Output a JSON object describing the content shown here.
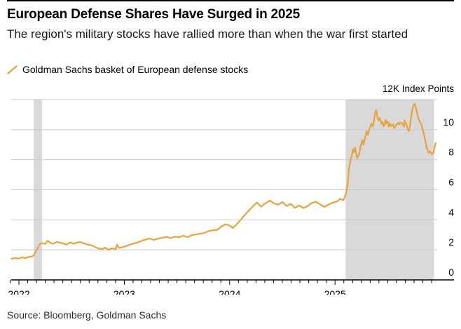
{
  "header": {
    "title": "European Defense Shares Have Surged in 2025",
    "subtitle": "The region's military stocks have rallied more than when the war first started"
  },
  "legend": {
    "label": "Goldman Sachs basket of European defense stocks"
  },
  "axis_unit_label": "12K Index Points",
  "source": "Source: Bloomberg, Goldman Sachs",
  "colors": {
    "line": "#E8A33D",
    "band": "#D9D9D9",
    "gridline": "#C9C9C9",
    "axis": "#000000",
    "text": "#000000"
  },
  "chart_data": {
    "type": "line",
    "title": "European Defense Shares Have Surged in 2025",
    "xlabel": "",
    "ylabel": "12K Index Points",
    "legend_position": "top-left",
    "grid": true,
    "xlim": [
      2021.93,
      2025.96
    ],
    "ylim": [
      0,
      12
    ],
    "x_ticks": [
      2022,
      2023,
      2024,
      2025
    ],
    "x_tick_labels": [
      "2022",
      "2023",
      "2024",
      "2025"
    ],
    "minor_x_tick_interval": 0.08333,
    "y_ticks": [
      0,
      2,
      4,
      6,
      8,
      10
    ],
    "y_tick_labels": [
      "0",
      "2",
      "4",
      "6",
      "8",
      "10"
    ],
    "y_top_gridline": 12,
    "shaded_bands": [
      {
        "x0": 2022.14,
        "x1": 2022.22
      },
      {
        "x0": 2025.1,
        "x1": 2025.94
      }
    ],
    "series": [
      {
        "name": "Goldman Sachs basket of European defense stocks",
        "color": "#E8A33D",
        "points": [
          [
            2021.93,
            1.4
          ],
          [
            2021.96,
            1.45
          ],
          [
            2022.0,
            1.42
          ],
          [
            2022.03,
            1.5
          ],
          [
            2022.06,
            1.44
          ],
          [
            2022.09,
            1.52
          ],
          [
            2022.12,
            1.55
          ],
          [
            2022.14,
            1.62
          ],
          [
            2022.16,
            1.9
          ],
          [
            2022.18,
            2.15
          ],
          [
            2022.2,
            2.4
          ],
          [
            2022.22,
            2.45
          ],
          [
            2022.25,
            2.38
          ],
          [
            2022.27,
            2.6
          ],
          [
            2022.3,
            2.48
          ],
          [
            2022.32,
            2.4
          ],
          [
            2022.36,
            2.52
          ],
          [
            2022.39,
            2.48
          ],
          [
            2022.42,
            2.42
          ],
          [
            2022.45,
            2.35
          ],
          [
            2022.49,
            2.5
          ],
          [
            2022.52,
            2.4
          ],
          [
            2022.55,
            2.48
          ],
          [
            2022.58,
            2.52
          ],
          [
            2022.61,
            2.45
          ],
          [
            2022.65,
            2.35
          ],
          [
            2022.69,
            2.3
          ],
          [
            2022.72,
            2.2
          ],
          [
            2022.75,
            2.1
          ],
          [
            2022.79,
            2.05
          ],
          [
            2022.82,
            2.15
          ],
          [
            2022.85,
            2.0
          ],
          [
            2022.88,
            2.1
          ],
          [
            2022.92,
            2.05
          ],
          [
            2022.93,
            2.35
          ],
          [
            2022.95,
            2.12
          ],
          [
            2022.98,
            2.18
          ],
          [
            2023.0,
            2.2
          ],
          [
            2023.04,
            2.32
          ],
          [
            2023.08,
            2.4
          ],
          [
            2023.12,
            2.48
          ],
          [
            2023.16,
            2.58
          ],
          [
            2023.2,
            2.68
          ],
          [
            2023.24,
            2.76
          ],
          [
            2023.28,
            2.66
          ],
          [
            2023.32,
            2.74
          ],
          [
            2023.36,
            2.8
          ],
          [
            2023.4,
            2.86
          ],
          [
            2023.44,
            2.78
          ],
          [
            2023.48,
            2.88
          ],
          [
            2023.52,
            2.84
          ],
          [
            2023.56,
            2.94
          ],
          [
            2023.6,
            2.85
          ],
          [
            2023.64,
            2.98
          ],
          [
            2023.68,
            3.02
          ],
          [
            2023.72,
            3.08
          ],
          [
            2023.76,
            3.12
          ],
          [
            2023.8,
            3.25
          ],
          [
            2023.84,
            3.3
          ],
          [
            2023.88,
            3.32
          ],
          [
            2023.92,
            3.55
          ],
          [
            2023.96,
            3.7
          ],
          [
            2024.0,
            3.62
          ],
          [
            2024.03,
            3.45
          ],
          [
            2024.06,
            3.65
          ],
          [
            2024.1,
            3.95
          ],
          [
            2024.14,
            4.3
          ],
          [
            2024.18,
            4.6
          ],
          [
            2024.22,
            4.9
          ],
          [
            2024.26,
            5.15
          ],
          [
            2024.3,
            4.88
          ],
          [
            2024.34,
            5.1
          ],
          [
            2024.38,
            5.28
          ],
          [
            2024.42,
            5.1
          ],
          [
            2024.46,
            5.0
          ],
          [
            2024.5,
            5.18
          ],
          [
            2024.54,
            4.92
          ],
          [
            2024.58,
            5.06
          ],
          [
            2024.62,
            4.8
          ],
          [
            2024.66,
            4.95
          ],
          [
            2024.7,
            4.78
          ],
          [
            2024.74,
            4.92
          ],
          [
            2024.78,
            5.12
          ],
          [
            2024.82,
            5.2
          ],
          [
            2024.86,
            5.02
          ],
          [
            2024.9,
            4.85
          ],
          [
            2024.94,
            5.02
          ],
          [
            2024.98,
            5.15
          ],
          [
            2025.02,
            5.22
          ],
          [
            2025.05,
            5.4
          ],
          [
            2025.08,
            5.3
          ],
          [
            2025.1,
            5.65
          ],
          [
            2025.12,
            6.3
          ],
          [
            2025.13,
            7.3
          ],
          [
            2025.145,
            7.9
          ],
          [
            2025.16,
            8.3
          ],
          [
            2025.17,
            8.7
          ],
          [
            2025.18,
            8.5
          ],
          [
            2025.19,
            8.8
          ],
          [
            2025.21,
            8.1
          ],
          [
            2025.23,
            8.4
          ],
          [
            2025.245,
            8.95
          ],
          [
            2025.26,
            9.3
          ],
          [
            2025.27,
            9.0
          ],
          [
            2025.29,
            9.6
          ],
          [
            2025.3,
            9.9
          ],
          [
            2025.31,
            9.65
          ],
          [
            2025.33,
            10.1
          ],
          [
            2025.345,
            10.4
          ],
          [
            2025.36,
            10.2
          ],
          [
            2025.37,
            10.65
          ],
          [
            2025.38,
            11.05
          ],
          [
            2025.39,
            11.3
          ],
          [
            2025.4,
            10.9
          ],
          [
            2025.41,
            10.6
          ],
          [
            2025.425,
            10.78
          ],
          [
            2025.44,
            10.4
          ],
          [
            2025.45,
            10.52
          ],
          [
            2025.46,
            10.22
          ],
          [
            2025.47,
            10.32
          ],
          [
            2025.48,
            10.65
          ],
          [
            2025.49,
            10.42
          ],
          [
            2025.5,
            10.52
          ],
          [
            2025.51,
            10.2
          ],
          [
            2025.52,
            10.42
          ],
          [
            2025.53,
            10.25
          ],
          [
            2025.55,
            10.35
          ],
          [
            2025.56,
            10.1
          ],
          [
            2025.58,
            10.3
          ],
          [
            2025.6,
            10.45
          ],
          [
            2025.61,
            10.35
          ],
          [
            2025.62,
            10.48
          ],
          [
            2025.64,
            10.4
          ],
          [
            2025.655,
            10.2
          ],
          [
            2025.66,
            10.6
          ],
          [
            2025.68,
            10.3
          ],
          [
            2025.69,
            10.05
          ],
          [
            2025.7,
            9.9
          ],
          [
            2025.71,
            10.2
          ],
          [
            2025.72,
            10.75
          ],
          [
            2025.73,
            11.2
          ],
          [
            2025.74,
            11.55
          ],
          [
            2025.755,
            11.72
          ],
          [
            2025.765,
            11.5
          ],
          [
            2025.78,
            11.1
          ],
          [
            2025.79,
            10.75
          ],
          [
            2025.8,
            10.6
          ],
          [
            2025.82,
            10.35
          ],
          [
            2025.83,
            10.05
          ],
          [
            2025.855,
            9.35
          ],
          [
            2025.87,
            8.8
          ],
          [
            2025.89,
            8.45
          ],
          [
            2025.9,
            8.55
          ],
          [
            2025.92,
            8.35
          ],
          [
            2025.935,
            8.45
          ],
          [
            2025.94,
            8.7
          ],
          [
            2025.955,
            9.1
          ]
        ]
      }
    ]
  }
}
